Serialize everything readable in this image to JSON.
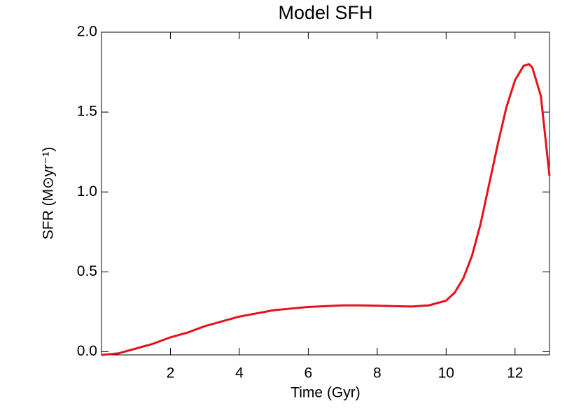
{
  "chart_data": {
    "type": "line",
    "title": "Model SFH",
    "xlabel": "Time (Gyr)",
    "ylabel": "SFR (M⊙yr⁻¹)",
    "x": [
      0,
      0.5,
      1,
      1.5,
      2,
      2.5,
      3,
      3.5,
      4,
      4.5,
      5,
      5.5,
      6,
      6.5,
      7,
      7.5,
      8,
      8.5,
      9,
      9.5,
      10,
      10.25,
      10.5,
      10.75,
      11,
      11.25,
      11.5,
      11.75,
      12,
      12.25,
      12.4,
      12.5,
      12.75,
      13
    ],
    "series": [
      {
        "name": "SFR",
        "color": "#e8101a",
        "values": [
          -0.02,
          -0.01,
          0.02,
          0.05,
          0.09,
          0.12,
          0.16,
          0.19,
          0.22,
          0.24,
          0.26,
          0.27,
          0.28,
          0.285,
          0.29,
          0.29,
          0.288,
          0.285,
          0.283,
          0.29,
          0.32,
          0.37,
          0.46,
          0.6,
          0.8,
          1.05,
          1.3,
          1.53,
          1.7,
          1.79,
          1.8,
          1.78,
          1.6,
          1.1
        ]
      }
    ],
    "xlim": [
      0,
      13
    ],
    "xticks": [
      2,
      4,
      6,
      8,
      10,
      12
    ],
    "ylim": [
      -0.02,
      2.0
    ],
    "yticks": [
      {
        "value": 0,
        "label": "0.0"
      },
      0.5,
      {
        "value": 1,
        "label": "1.0"
      },
      1.5,
      {
        "value": 2,
        "label": "2.0"
      }
    ]
  }
}
